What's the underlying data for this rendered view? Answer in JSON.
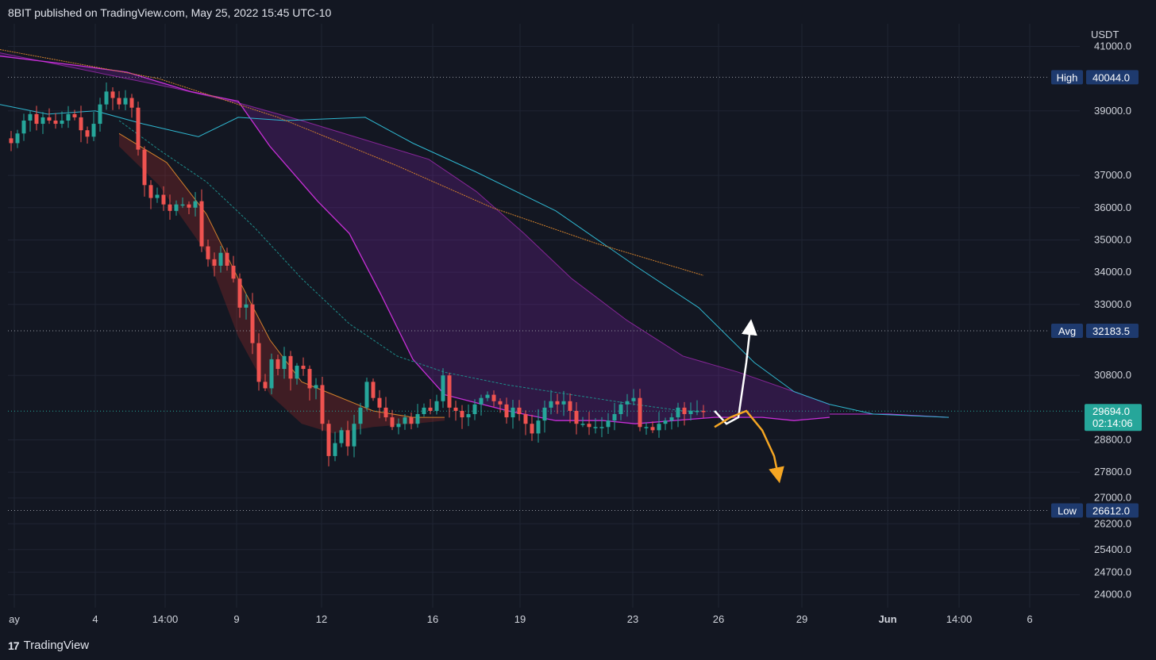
{
  "header": {
    "published": "8BIT published on TradingView.com, May 25, 2022 15:45 UTC-10"
  },
  "footer": {
    "logo_mark": "17",
    "brand": "TradingView"
  },
  "colors": {
    "background": "#131722",
    "grid": "#1f2433",
    "text": "#d1d4dc",
    "up_candle": "#26a69a",
    "down_candle": "#ef5350",
    "cloud_fill": "#7b1fa2",
    "cloud_line": "#c82fd8",
    "cyan_line": "#2fb7d0",
    "orange_line": "#d1802c",
    "label_blue": "#1e3a6e",
    "label_teal": "#26a69a",
    "arrow_up": "#ffffff",
    "arrow_down": "#f5a623"
  },
  "chart_data": {
    "type": "candlestick",
    "currency": "USDT",
    "ylim": [
      23600,
      41700
    ],
    "price_ticks": [
      41000,
      39000,
      37000,
      36000,
      35000,
      34000,
      33000,
      30800,
      28800,
      27800,
      27000,
      26200,
      25400,
      24700,
      24000
    ],
    "price_tick_labels": [
      "41000.0",
      "39000.0",
      "37000.0",
      "36000.0",
      "35000.0",
      "34000.0",
      "33000.0",
      "30800.0",
      "28800.0",
      "27800.0",
      "27000.0",
      "26200.0",
      "25400.0",
      "24700.0",
      "24000.0"
    ],
    "time_ticks": [
      "ay",
      "4",
      "14:00",
      "9",
      "12",
      "16",
      "19",
      "23",
      "26",
      "29",
      "Jun",
      "14:00",
      "6"
    ],
    "levels": [
      {
        "name": "High",
        "value": 40044.0,
        "label": "40044.0"
      },
      {
        "name": "Avg",
        "value": 32183.5,
        "label": "32183.5"
      },
      {
        "name": "Low",
        "value": 26612.0,
        "label": "26612.0"
      }
    ],
    "current": {
      "value": 29694.0,
      "label": "29694.0",
      "countdown": "02:14:06"
    },
    "closes": [
      38000,
      38300,
      38700,
      38900,
      38600,
      38800,
      38700,
      38600,
      38700,
      38900,
      38800,
      38400,
      38200,
      38600,
      39200,
      39600,
      39400,
      39200,
      39400,
      39100,
      37800,
      36700,
      36300,
      36400,
      36100,
      35900,
      36100,
      36100,
      36000,
      36200,
      34800,
      34400,
      34200,
      34600,
      34200,
      33800,
      32900,
      33000,
      31800,
      30600,
      30400,
      31300,
      31000,
      31400,
      30700,
      31100,
      31000,
      30400,
      30500,
      29300,
      28300,
      28700,
      29100,
      28600,
      29300,
      29800,
      30600,
      30100,
      29800,
      29500,
      29200,
      29300,
      29500,
      29300,
      29600,
      29800,
      29700,
      30000,
      30800,
      29800,
      29700,
      29500,
      29600,
      29900,
      30100,
      30200,
      30000,
      29900,
      29500,
      29800,
      29600,
      29300,
      29000,
      29400,
      29800,
      30000,
      29900,
      30000,
      29700,
      29300,
      29300,
      29200,
      29200,
      29200,
      29400,
      29600,
      29900,
      30000,
      30100,
      29200,
      29200,
      29100,
      29300,
      29400,
      29500,
      29800,
      29600,
      29700,
      29700,
      29694
    ],
    "cloud_upper": [
      [
        0,
        40800
      ],
      [
        60,
        40500
      ],
      [
        140,
        40100
      ],
      [
        220,
        39700
      ],
      [
        300,
        39250
      ],
      [
        380,
        38700
      ],
      [
        460,
        38100
      ],
      [
        540,
        37500
      ],
      [
        600,
        36500
      ],
      [
        660,
        35200
      ],
      [
        720,
        33800
      ],
      [
        790,
        32500
      ],
      [
        860,
        31400
      ],
      [
        930,
        30900
      ],
      [
        1000,
        30300
      ],
      [
        1045,
        29900
      ]
    ],
    "cloud_lower": [
      [
        0,
        40700
      ],
      [
        100,
        40400
      ],
      [
        160,
        40200
      ],
      [
        240,
        39600
      ],
      [
        300,
        39300
      ],
      [
        340,
        37900
      ],
      [
        400,
        36200
      ],
      [
        440,
        35200
      ],
      [
        480,
        33300
      ],
      [
        520,
        31300
      ],
      [
        560,
        30200
      ],
      [
        640,
        29700
      ],
      [
        700,
        29400
      ],
      [
        760,
        29400
      ],
      [
        800,
        29300
      ],
      [
        900,
        29500
      ],
      [
        960,
        29500
      ],
      [
        1000,
        29400
      ],
      [
        1045,
        29500
      ]
    ],
    "purple_tail": [
      [
        1045,
        29600
      ],
      [
        1120,
        29600
      ],
      [
        1195,
        29500
      ]
    ],
    "cyan_line": [
      [
        0,
        39200
      ],
      [
        60,
        38900
      ],
      [
        120,
        39000
      ],
      [
        180,
        38600
      ],
      [
        250,
        38200
      ],
      [
        300,
        38800
      ],
      [
        360,
        38700
      ],
      [
        460,
        38800
      ],
      [
        520,
        38000
      ],
      [
        600,
        37100
      ],
      [
        700,
        35900
      ],
      [
        800,
        34200
      ],
      [
        880,
        32900
      ],
      [
        950,
        31200
      ],
      [
        1000,
        30300
      ],
      [
        1045,
        29900
      ],
      [
        1100,
        29600
      ],
      [
        1195,
        29500
      ]
    ],
    "orange_line": [
      [
        0,
        40900
      ],
      [
        200,
        40000
      ],
      [
        350,
        38800
      ],
      [
        500,
        37300
      ],
      [
        620,
        36000
      ],
      [
        750,
        34900
      ],
      [
        886,
        33900
      ]
    ],
    "teal_step": [
      [
        150,
        38700
      ],
      [
        200,
        37800
      ],
      [
        260,
        36800
      ],
      [
        320,
        35400
      ],
      [
        380,
        33800
      ],
      [
        440,
        32400
      ],
      [
        500,
        31400
      ],
      [
        560,
        30900
      ],
      [
        640,
        30500
      ],
      [
        720,
        30200
      ],
      [
        800,
        29900
      ],
      [
        860,
        29700
      ],
      [
        886,
        29700
      ]
    ],
    "red_band_upper": [
      [
        150,
        38300
      ],
      [
        210,
        37400
      ],
      [
        260,
        35800
      ],
      [
        300,
        33800
      ],
      [
        340,
        31900
      ],
      [
        380,
        30600
      ],
      [
        420,
        30200
      ],
      [
        470,
        29700
      ],
      [
        520,
        29500
      ],
      [
        560,
        29500
      ]
    ],
    "red_band_lower": [
      [
        150,
        37900
      ],
      [
        200,
        36700
      ],
      [
        260,
        34600
      ],
      [
        300,
        32000
      ],
      [
        340,
        30200
      ],
      [
        380,
        29300
      ],
      [
        420,
        29000
      ],
      [
        470,
        29200
      ],
      [
        520,
        29300
      ],
      [
        560,
        29400
      ]
    ],
    "path_up": [
      [
        900,
        29700
      ],
      [
        915,
        29300
      ],
      [
        930,
        29500
      ],
      [
        940,
        31200
      ],
      [
        945,
        32300
      ]
    ],
    "path_down": [
      [
        900,
        29200
      ],
      [
        920,
        29500
      ],
      [
        940,
        29700
      ],
      [
        960,
        29100
      ],
      [
        975,
        28300
      ],
      [
        980,
        27700
      ]
    ]
  }
}
